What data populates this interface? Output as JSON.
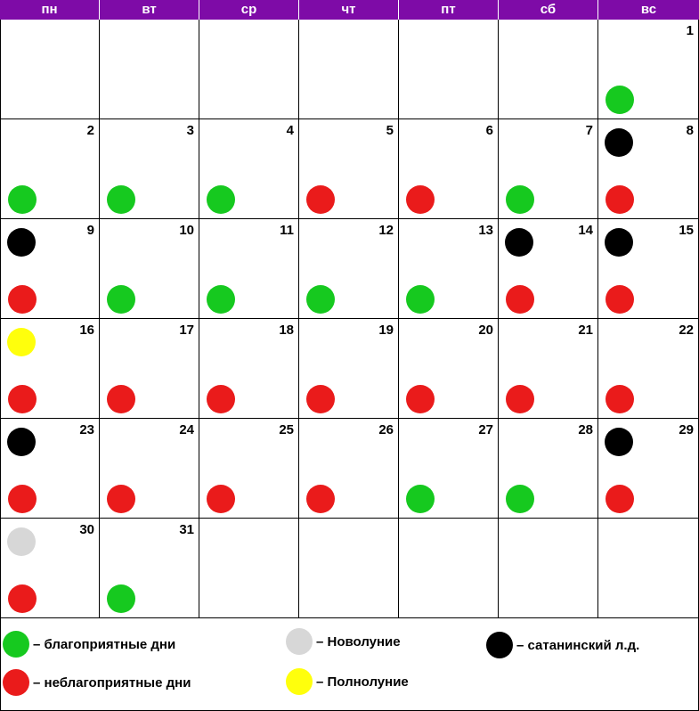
{
  "weekdays": [
    "пн",
    "вт",
    "ср",
    "чт",
    "пт",
    "сб",
    "вс"
  ],
  "colors": {
    "header_bg": "#7e0ba7",
    "favorable": "#16c91f",
    "unfavorable": "#ea1b1b",
    "new_moon": "#d7d7d7",
    "full_moon": "#ffff0c",
    "satanic": "#000000"
  },
  "first_weekday_index": 6,
  "days": [
    {
      "day": "1",
      "status": "favorable",
      "phase": null
    },
    {
      "day": "2",
      "status": "favorable",
      "phase": null
    },
    {
      "day": "3",
      "status": "favorable",
      "phase": null
    },
    {
      "day": "4",
      "status": "favorable",
      "phase": null
    },
    {
      "day": "5",
      "status": "unfavorable",
      "phase": null
    },
    {
      "day": "6",
      "status": "unfavorable",
      "phase": null
    },
    {
      "day": "7",
      "status": "favorable",
      "phase": null
    },
    {
      "day": "8",
      "status": "unfavorable",
      "phase": "satanic"
    },
    {
      "day": "9",
      "status": "unfavorable",
      "phase": "satanic"
    },
    {
      "day": "10",
      "status": "favorable",
      "phase": null
    },
    {
      "day": "11",
      "status": "favorable",
      "phase": null
    },
    {
      "day": "12",
      "status": "favorable",
      "phase": null
    },
    {
      "day": "13",
      "status": "favorable",
      "phase": null
    },
    {
      "day": "14",
      "status": "unfavorable",
      "phase": "satanic"
    },
    {
      "day": "15",
      "status": "unfavorable",
      "phase": "satanic"
    },
    {
      "day": "16",
      "status": "unfavorable",
      "phase": "full_moon"
    },
    {
      "day": "17",
      "status": "unfavorable",
      "phase": null
    },
    {
      "day": "18",
      "status": "unfavorable",
      "phase": null
    },
    {
      "day": "19",
      "status": "unfavorable",
      "phase": null
    },
    {
      "day": "20",
      "status": "unfavorable",
      "phase": null
    },
    {
      "day": "21",
      "status": "unfavorable",
      "phase": null
    },
    {
      "day": "22",
      "status": "unfavorable",
      "phase": null
    },
    {
      "day": "23",
      "status": "unfavorable",
      "phase": "satanic"
    },
    {
      "day": "24",
      "status": "unfavorable",
      "phase": null
    },
    {
      "day": "25",
      "status": "unfavorable",
      "phase": null
    },
    {
      "day": "26",
      "status": "unfavorable",
      "phase": null
    },
    {
      "day": "27",
      "status": "favorable",
      "phase": null
    },
    {
      "day": "28",
      "status": "favorable",
      "phase": null
    },
    {
      "day": "29",
      "status": "unfavorable",
      "phase": "satanic"
    },
    {
      "day": "30",
      "status": "unfavorable",
      "phase": "new_moon"
    },
    {
      "day": "31",
      "status": "favorable",
      "phase": null
    }
  ],
  "legend": {
    "favorable": "– благоприятные дни",
    "unfavorable": "– неблагоприятные дни",
    "new_moon": "– Новолуние",
    "full_moon": "– Полнолуние",
    "satanic": "– сатанинский л.д."
  }
}
